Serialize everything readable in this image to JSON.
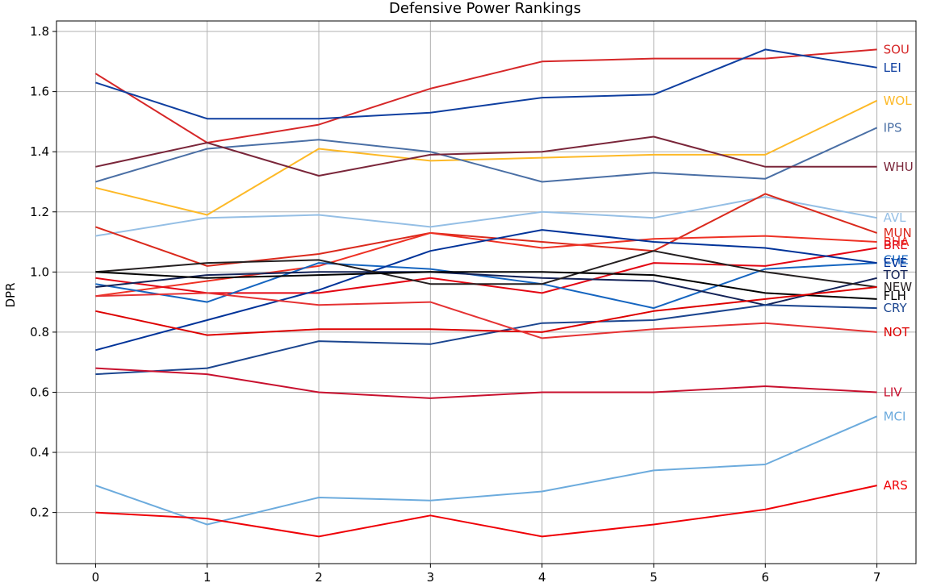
{
  "chart_data": {
    "type": "line",
    "title": "Defensive Power Rankings",
    "xlabel": "",
    "ylabel": "DPR",
    "x": [
      0,
      1,
      2,
      3,
      4,
      5,
      6,
      7
    ],
    "xlim": [
      -0.35,
      7.35
    ],
    "ylim": [
      0.03,
      1.835
    ],
    "xticks": [
      0,
      1,
      2,
      3,
      4,
      5,
      6,
      7
    ],
    "yticks": [
      0.2,
      0.4,
      0.6,
      0.8,
      1.0,
      1.2,
      1.4,
      1.6,
      1.8
    ],
    "ytick_labels": [
      "0.2",
      "0.4",
      "0.6",
      "0.8",
      "1.0",
      "1.2",
      "1.4",
      "1.6",
      "1.8"
    ],
    "grid": true,
    "legend": "none",
    "series": [
      {
        "name": "SOU",
        "color": "#d62728",
        "values": [
          1.66,
          1.43,
          1.49,
          1.61,
          1.7,
          1.71,
          1.71,
          1.74
        ]
      },
      {
        "name": "LEI",
        "color": "#0f3fa0",
        "values": [
          1.63,
          1.51,
          1.51,
          1.53,
          1.58,
          1.59,
          1.74,
          1.68
        ]
      },
      {
        "name": "WOL",
        "color": "#fdb927",
        "values": [
          1.28,
          1.19,
          1.41,
          1.37,
          1.38,
          1.39,
          1.39,
          1.57
        ]
      },
      {
        "name": "IPS",
        "color": "#4a6fa5",
        "values": [
          1.3,
          1.41,
          1.44,
          1.4,
          1.3,
          1.33,
          1.31,
          1.48
        ]
      },
      {
        "name": "WHU",
        "color": "#7a263a",
        "values": [
          1.35,
          1.43,
          1.32,
          1.39,
          1.4,
          1.45,
          1.35,
          1.35
        ]
      },
      {
        "name": "AVL",
        "color": "#95bfe5",
        "values": [
          1.12,
          1.18,
          1.19,
          1.15,
          1.2,
          1.18,
          1.25,
          1.18
        ]
      },
      {
        "name": "MUN",
        "color": "#da291c",
        "values": [
          1.15,
          1.02,
          1.06,
          1.13,
          1.1,
          1.07,
          1.26,
          1.13
        ]
      },
      {
        "name": "BHA",
        "color": "#ee3124",
        "values": [
          0.92,
          0.97,
          1.02,
          1.13,
          1.08,
          1.11,
          1.12,
          1.1
        ]
      },
      {
        "name": "BRE",
        "color": "#e30613",
        "values": [
          0.98,
          0.93,
          0.93,
          0.98,
          0.93,
          1.03,
          1.02,
          1.08
        ]
      },
      {
        "name": "CHE",
        "color": "#1565c0",
        "values": [
          0.96,
          0.9,
          1.03,
          1.01,
          0.96,
          0.88,
          1.01,
          1.03
        ]
      },
      {
        "name": "EVE",
        "color": "#003399",
        "values": [
          0.74,
          0.84,
          0.94,
          1.07,
          1.14,
          1.1,
          1.08,
          1.03
        ]
      },
      {
        "name": "TOT",
        "color": "#132257",
        "values": [
          0.95,
          0.99,
          1.0,
          1.0,
          0.98,
          0.97,
          0.89,
          0.98
        ]
      },
      {
        "name": "NEW",
        "color": "#241f20",
        "values": [
          1.0,
          1.03,
          1.04,
          0.96,
          0.96,
          1.07,
          1.0,
          0.95
        ]
      },
      {
        "name": "FLH",
        "color": "#000000",
        "values": [
          1.0,
          0.98,
          0.99,
          1.0,
          1.0,
          0.99,
          0.93,
          0.91
        ]
      },
      {
        "name": "CRY",
        "color": "#1b458f",
        "values": [
          0.66,
          0.68,
          0.77,
          0.76,
          0.83,
          0.84,
          0.89,
          0.88
        ]
      },
      {
        "name": "NOT",
        "color": "#dd0000",
        "values": [
          0.87,
          0.79,
          0.81,
          0.81,
          0.8,
          0.87,
          0.91,
          0.95
        ]
      },
      {
        "name": "",
        "color": "#e53233",
        "values": [
          0.92,
          0.93,
          0.89,
          0.9,
          0.78,
          0.81,
          0.83,
          0.8
        ]
      },
      {
        "name": "LIV",
        "color": "#c8102e",
        "values": [
          0.68,
          0.66,
          0.6,
          0.58,
          0.6,
          0.6,
          0.62,
          0.6
        ]
      },
      {
        "name": "MCI",
        "color": "#6cabdd",
        "values": [
          0.29,
          0.16,
          0.25,
          0.24,
          0.27,
          0.34,
          0.36,
          0.52
        ]
      },
      {
        "name": "ARS",
        "color": "#ef0107",
        "values": [
          0.2,
          0.18,
          0.12,
          0.19,
          0.12,
          0.16,
          0.21,
          0.29
        ]
      }
    ],
    "end_labels": [
      {
        "text": "SOU",
        "color": "#d62728",
        "y": 1.74
      },
      {
        "text": "LEI",
        "color": "#0f3fa0",
        "y": 1.68
      },
      {
        "text": "WOL",
        "color": "#fdb927",
        "y": 1.57
      },
      {
        "text": "IPS",
        "color": "#4a6fa5",
        "y": 1.48
      },
      {
        "text": "WHU",
        "color": "#7a263a",
        "y": 1.35
      },
      {
        "text": "AVL",
        "color": "#95bfe5",
        "y": 1.18
      },
      {
        "text": "MUN",
        "color": "#da291c",
        "y": 1.13
      },
      {
        "text": "BHA",
        "color": "#ee3124",
        "y": 1.1
      },
      {
        "text": "BRE",
        "color": "#e30613",
        "y": 1.09
      },
      {
        "text": "CHE",
        "color": "#1565c0",
        "y": 1.04
      },
      {
        "text": "EVE",
        "color": "#003399",
        "y": 1.03
      },
      {
        "text": "TOT",
        "color": "#132257",
        "y": 0.99
      },
      {
        "text": "NEW",
        "color": "#241f20",
        "y": 0.95
      },
      {
        "text": "FLH",
        "color": "#000000",
        "y": 0.92
      },
      {
        "text": "CRY",
        "color": "#1b458f",
        "y": 0.88
      },
      {
        "text": "NOT",
        "color": "#dd0000",
        "y": 0.8
      },
      {
        "text": "LIV",
        "color": "#c8102e",
        "y": 0.6
      },
      {
        "text": "MCI",
        "color": "#6cabdd",
        "y": 0.52
      },
      {
        "text": "ARS",
        "color": "#ef0107",
        "y": 0.29
      }
    ]
  }
}
